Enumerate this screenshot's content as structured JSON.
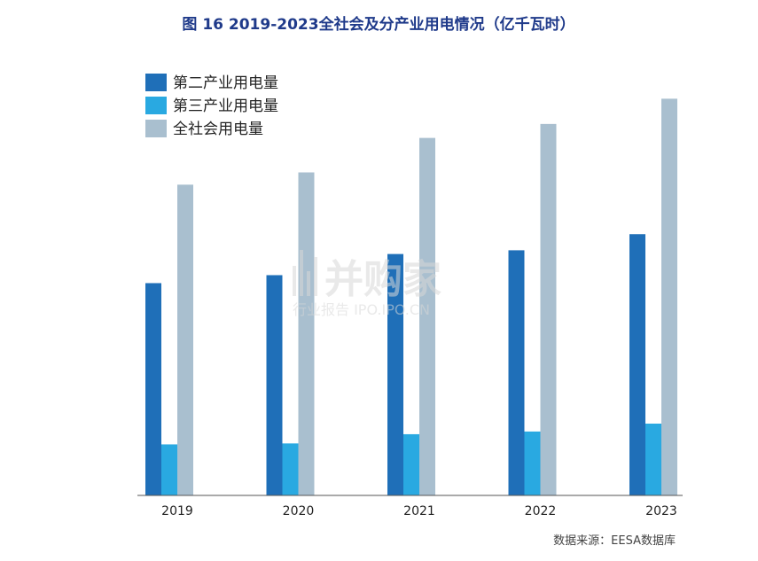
{
  "chart_data": {
    "type": "bar",
    "title": "图 16 2019-2023全社会及分产业用电情况（亿千瓦时）",
    "categories": [
      "2019",
      "2020",
      "2021",
      "2022",
      "2023"
    ],
    "series": [
      {
        "name": "第二产业用电量",
        "color": "#1f6fb8",
        "values": [
          49362,
          51215,
          56131,
          57001,
          60745
        ]
      },
      {
        "name": "第三产业用电量",
        "color": "#29a9e1",
        "values": [
          11863,
          12087,
          14231,
          14859,
          16694
        ]
      },
      {
        "name": "全社会用电量",
        "color": "#a9bfcf",
        "values": [
          72255,
          75110,
          83128,
          86372,
          92241
        ]
      }
    ],
    "ylim": [
      0,
      95000
    ],
    "grid": false,
    "legend_position": "top-left"
  },
  "source": "数据来源：EESA数据库",
  "watermark": {
    "brand": "并购家",
    "tagline": "行业报告 IPO.IPO.CN"
  }
}
